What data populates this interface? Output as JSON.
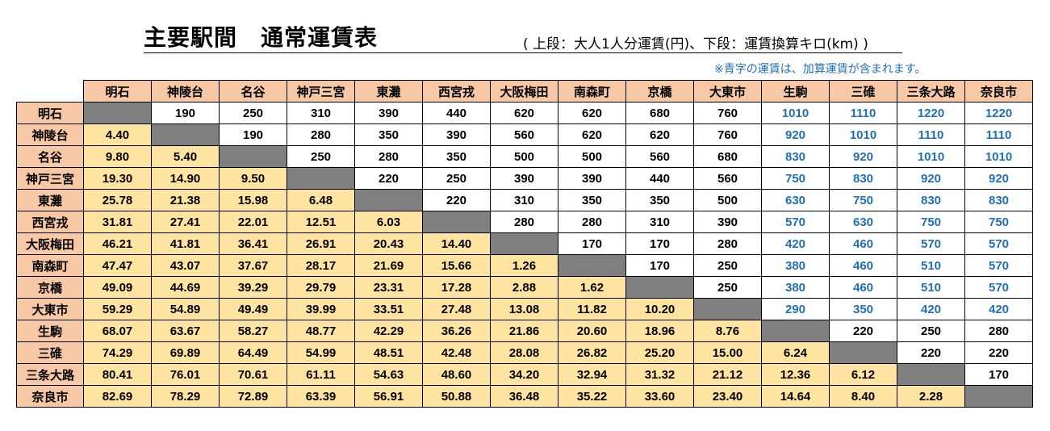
{
  "title": "主要駅間　通常運賃表",
  "subtitle": "( 上段：大人1人分運賃(円)、下段：運賃換算キロ(km) )",
  "note": "※青字の運賃は、加算運賃が含まれます。",
  "colors": {
    "header": "#f7c8a5",
    "km_cell": "#ffe3a0",
    "diagonal": "#7f7f7f",
    "blue_text": "#1f6fb5"
  },
  "stations": [
    "明石",
    "神陵台",
    "名谷",
    "神戸三宮",
    "東灘",
    "西宮戎",
    "大阪梅田",
    "南森町",
    "京橋",
    "大東市",
    "生駒",
    "三碓",
    "三条大路",
    "奈良市"
  ],
  "rows": [
    [
      "",
      "190",
      "250",
      "310",
      "390",
      "440",
      "620",
      "620",
      "680",
      "760",
      "1010",
      "1110",
      "1220",
      "1220"
    ],
    [
      "4.40",
      "",
      "190",
      "280",
      "350",
      "390",
      "560",
      "620",
      "620",
      "760",
      "920",
      "1010",
      "1110",
      "1110"
    ],
    [
      "9.80",
      "5.40",
      "",
      "250",
      "280",
      "350",
      "500",
      "500",
      "560",
      "680",
      "830",
      "920",
      "1010",
      "1010"
    ],
    [
      "19.30",
      "14.90",
      "9.50",
      "",
      "220",
      "250",
      "390",
      "390",
      "440",
      "560",
      "750",
      "830",
      "920",
      "920"
    ],
    [
      "25.78",
      "21.38",
      "15.98",
      "6.48",
      "",
      "220",
      "310",
      "350",
      "350",
      "500",
      "630",
      "750",
      "830",
      "830"
    ],
    [
      "31.81",
      "27.41",
      "22.01",
      "12.51",
      "6.03",
      "",
      "280",
      "280",
      "310",
      "390",
      "570",
      "630",
      "750",
      "750"
    ],
    [
      "46.21",
      "41.81",
      "36.41",
      "26.91",
      "20.43",
      "14.40",
      "",
      "170",
      "170",
      "280",
      "420",
      "460",
      "570",
      "570"
    ],
    [
      "47.47",
      "43.07",
      "37.67",
      "28.17",
      "21.69",
      "15.66",
      "1.26",
      "",
      "170",
      "250",
      "380",
      "460",
      "510",
      "570"
    ],
    [
      "49.09",
      "44.69",
      "39.29",
      "29.79",
      "23.31",
      "17.28",
      "2.88",
      "1.62",
      "",
      "250",
      "380",
      "460",
      "510",
      "570"
    ],
    [
      "59.29",
      "54.89",
      "49.49",
      "39.99",
      "33.51",
      "27.48",
      "13.08",
      "11.82",
      "10.20",
      "",
      "290",
      "350",
      "420",
      "420"
    ],
    [
      "68.07",
      "63.67",
      "58.27",
      "48.77",
      "42.29",
      "36.26",
      "21.86",
      "20.60",
      "18.96",
      "8.76",
      "",
      "220",
      "250",
      "280"
    ],
    [
      "74.29",
      "69.89",
      "64.49",
      "54.99",
      "48.51",
      "42.48",
      "28.08",
      "26.82",
      "25.20",
      "15.00",
      "6.24",
      "",
      "220",
      "220"
    ],
    [
      "80.41",
      "76.01",
      "70.61",
      "61.11",
      "54.63",
      "48.60",
      "34.20",
      "32.94",
      "31.32",
      "21.12",
      "12.36",
      "6.12",
      "",
      "170"
    ],
    [
      "82.69",
      "78.29",
      "72.89",
      "63.39",
      "56.91",
      "50.88",
      "36.48",
      "35.22",
      "33.60",
      "23.40",
      "14.64",
      "8.40",
      "2.28",
      ""
    ]
  ],
  "blue_fares": [
    [
      0,
      10
    ],
    [
      0,
      11
    ],
    [
      0,
      12
    ],
    [
      0,
      13
    ],
    [
      1,
      10
    ],
    [
      1,
      11
    ],
    [
      1,
      12
    ],
    [
      1,
      13
    ],
    [
      2,
      10
    ],
    [
      2,
      11
    ],
    [
      2,
      12
    ],
    [
      2,
      13
    ],
    [
      3,
      10
    ],
    [
      3,
      11
    ],
    [
      3,
      12
    ],
    [
      3,
      13
    ],
    [
      4,
      10
    ],
    [
      4,
      11
    ],
    [
      4,
      12
    ],
    [
      4,
      13
    ],
    [
      5,
      10
    ],
    [
      5,
      11
    ],
    [
      5,
      12
    ],
    [
      5,
      13
    ],
    [
      6,
      10
    ],
    [
      6,
      11
    ],
    [
      6,
      12
    ],
    [
      6,
      13
    ],
    [
      7,
      10
    ],
    [
      7,
      11
    ],
    [
      7,
      12
    ],
    [
      7,
      13
    ],
    [
      8,
      10
    ],
    [
      8,
      11
    ],
    [
      8,
      12
    ],
    [
      8,
      13
    ],
    [
      9,
      10
    ],
    [
      9,
      11
    ],
    [
      9,
      12
    ],
    [
      9,
      13
    ]
  ]
}
